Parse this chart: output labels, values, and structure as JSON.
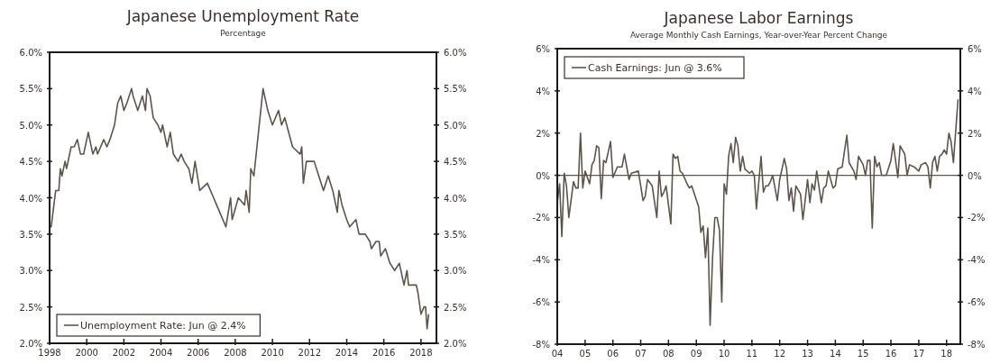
{
  "chart_data": [
    {
      "type": "line",
      "title": "Japanese Unemployment Rate",
      "subtitle": "Percentage",
      "x": [
        "1998-01",
        "1998-02",
        "1998-05",
        "1998-07",
        "1998-08",
        "1998-09",
        "1998-11",
        "1998-12",
        "1999-03",
        "1999-05",
        "1999-07",
        "1999-09",
        "1999-11",
        "2000-02",
        "2000-05",
        "2000-07",
        "2000-08",
        "2000-12",
        "2001-02",
        "2001-04",
        "2001-07",
        "2001-09",
        "2001-11",
        "2002-01",
        "2002-03",
        "2002-06",
        "2002-07",
        "2002-10",
        "2003-01",
        "2003-03",
        "2003-04",
        "2003-06",
        "2003-08",
        "2003-11",
        "2004-01",
        "2004-02",
        "2004-05",
        "2004-07",
        "2004-09",
        "2004-12",
        "2005-02",
        "2005-04",
        "2005-07",
        "2005-09",
        "2005-11",
        "2006-02",
        "2006-07",
        "2006-11",
        "2007-03",
        "2007-07",
        "2007-10",
        "2007-11",
        "2008-03",
        "2008-07",
        "2008-08",
        "2008-10",
        "2008-11",
        "2009-01",
        "2009-07",
        "2009-10",
        "2010-01",
        "2010-05",
        "2010-07",
        "2010-09",
        "2011-02",
        "2011-07",
        "2011-08",
        "2011-09",
        "2011-11",
        "2012-04",
        "2012-07",
        "2012-10",
        "2013-01",
        "2013-04",
        "2013-07",
        "2013-08",
        "2013-10",
        "2014-01",
        "2014-03",
        "2014-07",
        "2014-09",
        "2015-01",
        "2015-04",
        "2015-05",
        "2015-08",
        "2015-10",
        "2015-11",
        "2016-02",
        "2016-05",
        "2016-08",
        "2016-11",
        "2017-02",
        "2017-04",
        "2017-05",
        "2017-10",
        "2017-11",
        "2018-01",
        "2018-03",
        "2018-04",
        "2018-05",
        "2018-06"
      ],
      "series": [
        {
          "name": "Unemployment Rate: Jun @ 2.4%",
          "color": "#5f544a",
          "values": [
            3.6,
            3.6,
            4.1,
            4.1,
            4.4,
            4.3,
            4.5,
            4.4,
            4.7,
            4.7,
            4.8,
            4.6,
            4.6,
            4.9,
            4.6,
            4.7,
            4.6,
            4.8,
            4.7,
            4.8,
            5.0,
            5.3,
            5.4,
            5.2,
            5.3,
            5.5,
            5.4,
            5.2,
            5.4,
            5.2,
            5.5,
            5.4,
            5.1,
            5.0,
            4.9,
            5.0,
            4.7,
            4.9,
            4.6,
            4.5,
            4.6,
            4.5,
            4.4,
            4.2,
            4.5,
            4.1,
            4.2,
            4.0,
            3.8,
            3.6,
            4.0,
            3.7,
            4.0,
            3.9,
            4.1,
            3.8,
            4.4,
            4.3,
            5.5,
            5.2,
            5.0,
            5.2,
            5.0,
            5.1,
            4.7,
            4.6,
            4.7,
            4.2,
            4.5,
            4.5,
            4.3,
            4.1,
            4.3,
            4.1,
            3.8,
            4.1,
            3.9,
            3.7,
            3.6,
            3.7,
            3.5,
            3.5,
            3.4,
            3.3,
            3.4,
            3.4,
            3.2,
            3.3,
            3.1,
            3.0,
            3.1,
            2.8,
            3.0,
            2.8,
            2.8,
            2.7,
            2.4,
            2.5,
            2.5,
            2.2,
            2.4
          ]
        }
      ],
      "xlim": [
        "1998-01",
        "2018-11"
      ],
      "xticks": [
        {
          "value": "1998",
          "label": "1998"
        },
        {
          "value": "2000",
          "label": "2000"
        },
        {
          "value": "2002",
          "label": "2002"
        },
        {
          "value": "2004",
          "label": "2004"
        },
        {
          "value": "2006",
          "label": "2006"
        },
        {
          "value": "2008",
          "label": "2008"
        },
        {
          "value": "2010",
          "label": "2010"
        },
        {
          "value": "2012",
          "label": "2012"
        },
        {
          "value": "2014",
          "label": "2014"
        },
        {
          "value": "2016",
          "label": "2016"
        },
        {
          "value": "2018",
          "label": "2018"
        }
      ],
      "ylim": [
        2,
        6
      ],
      "yticks": [
        {
          "value": 2,
          "label": "2.0%"
        },
        {
          "value": 2.5,
          "label": "2.5%"
        },
        {
          "value": 3,
          "label": "3.0%"
        },
        {
          "value": 3.5,
          "label": "3.5%"
        },
        {
          "value": 4,
          "label": "4.0%"
        },
        {
          "value": 4.5,
          "label": "4.5%"
        },
        {
          "value": 5,
          "label": "5.0%"
        },
        {
          "value": 5.5,
          "label": "5.5%"
        },
        {
          "value": 6,
          "label": "6.0%"
        }
      ],
      "y2lim": [
        2,
        6
      ],
      "y2ticks": [
        {
          "value": 2,
          "label": "2.0%"
        },
        {
          "value": 2.5,
          "label": "2.5%"
        },
        {
          "value": 3,
          "label": "3.0%"
        },
        {
          "value": 3.5,
          "label": "3.5%"
        },
        {
          "value": 4,
          "label": "4.0%"
        },
        {
          "value": 4.5,
          "label": "4.5%"
        },
        {
          "value": 5,
          "label": "5.0%"
        },
        {
          "value": 5.5,
          "label": "5.5%"
        },
        {
          "value": 6,
          "label": "6.0%"
        }
      ],
      "legend": "bottom left"
    },
    {
      "type": "line",
      "title": "Japanese Labor Earnings",
      "subtitle": "Average Monthly Cash Earnings, Year-over-Year Percent Change",
      "x": [
        "2004-01",
        "2004-02",
        "2004-03",
        "2004-04",
        "2004-05",
        "2004-06",
        "2004-08",
        "2004-09",
        "2004-10",
        "2004-11",
        "2004-12",
        "2005-01",
        "2005-03",
        "2005-04",
        "2005-05",
        "2005-06",
        "2005-07",
        "2005-08",
        "2005-09",
        "2005-10",
        "2005-12",
        "2006-01",
        "2006-03",
        "2006-05",
        "2006-06",
        "2006-08",
        "2006-09",
        "2006-12",
        "2007-02",
        "2007-03",
        "2007-04",
        "2007-06",
        "2007-08",
        "2007-09",
        "2007-10",
        "2007-11",
        "2007-12",
        "2008-02",
        "2008-03",
        "2008-04",
        "2008-05",
        "2008-06",
        "2008-07",
        "2008-09",
        "2008-10",
        "2008-11",
        "2009-02",
        "2009-03",
        "2009-04",
        "2009-05",
        "2009-06",
        "2009-07",
        "2009-08",
        "2009-09",
        "2009-10",
        "2009-11",
        "2009-12",
        "2010-01",
        "2010-02",
        "2010-03",
        "2010-04",
        "2010-05",
        "2010-06",
        "2010-07",
        "2010-08",
        "2010-09",
        "2010-10",
        "2010-12",
        "2011-01",
        "2011-02",
        "2011-03",
        "2011-05",
        "2011-06",
        "2011-07",
        "2011-08",
        "2011-09",
        "2011-10",
        "2011-12",
        "2012-01",
        "2012-03",
        "2012-04",
        "2012-05",
        "2012-06",
        "2012-07",
        "2012-08",
        "2012-09",
        "2012-10",
        "2012-11",
        "2013-01",
        "2013-02",
        "2013-03",
        "2013-04",
        "2013-05",
        "2013-07",
        "2013-08",
        "2013-09",
        "2013-10",
        "2013-12",
        "2014-01",
        "2014-02",
        "2014-04",
        "2014-06",
        "2014-07",
        "2014-09",
        "2014-10",
        "2014-11",
        "2015-01",
        "2015-02",
        "2015-03",
        "2015-04",
        "2015-05",
        "2015-06",
        "2015-07",
        "2015-08",
        "2015-09",
        "2015-11",
        "2016-01",
        "2016-02",
        "2016-04",
        "2016-05",
        "2016-07",
        "2016-08",
        "2016-09",
        "2016-11",
        "2017-01",
        "2017-02",
        "2017-04",
        "2017-05",
        "2017-06",
        "2017-07",
        "2017-08",
        "2017-09",
        "2017-10",
        "2017-11",
        "2017-12",
        "2018-01",
        "2018-02",
        "2018-03",
        "2018-04",
        "2018-05",
        "2018-06"
      ],
      "series": [
        {
          "name": "Cash Earnings: Jun @ 3.6%",
          "color": "#5f544a",
          "values": [
            -1.3,
            -0.4,
            -2.9,
            0.1,
            -0.5,
            -2.0,
            -0.3,
            -0.6,
            -0.6,
            2.0,
            -0.6,
            0.2,
            -0.4,
            0.5,
            0.7,
            1.4,
            1.3,
            -1.1,
            0.7,
            0.6,
            1.6,
            -0.1,
            0.4,
            0.4,
            1.0,
            -0.2,
            0.1,
            0.2,
            -1.2,
            -1.0,
            -0.2,
            -0.5,
            -2.0,
            0.2,
            -1.0,
            -0.8,
            -0.5,
            -2.3,
            1.0,
            0.8,
            0.9,
            0.2,
            0.1,
            -0.4,
            -0.6,
            -0.5,
            -1.5,
            -2.7,
            -2.4,
            -3.9,
            -2.5,
            -7.1,
            -4.0,
            -2.0,
            -2.0,
            -2.6,
            -6.0,
            -0.4,
            -0.9,
            0.9,
            1.5,
            0.6,
            1.8,
            1.4,
            0.2,
            0.9,
            0.3,
            0.1,
            0.2,
            0.0,
            -1.6,
            0.9,
            -0.8,
            -0.5,
            -0.5,
            -0.3,
            0.0,
            -1.2,
            -0.2,
            0.8,
            0.3,
            -1.2,
            -0.6,
            -1.7,
            -0.5,
            -0.7,
            -0.9,
            -2.1,
            -0.2,
            -1.3,
            -0.4,
            -0.7,
            0.2,
            -1.3,
            -0.6,
            -0.5,
            0.2,
            -0.6,
            -0.5,
            0.3,
            0.4,
            1.9,
            0.6,
            0.2,
            -0.2,
            0.9,
            0.5,
            0.0,
            0.7,
            0.7,
            -2.5,
            0.9,
            0.4,
            0.6,
            0.0,
            0.0,
            0.7,
            1.5,
            -0.1,
            1.4,
            1.0,
            0.0,
            0.5,
            0.4,
            0.2,
            0.5,
            0.6,
            0.4,
            -0.6,
            0.6,
            0.9,
            0.2,
            0.9,
            1.0,
            1.2,
            1.0,
            2.0,
            1.6,
            0.6,
            2.1,
            3.6
          ]
        }
      ],
      "xlim": [
        "2004-01",
        "2018-07"
      ],
      "xticks": [
        {
          "value": "2004",
          "label": "04"
        },
        {
          "value": "2005",
          "label": "05"
        },
        {
          "value": "2006",
          "label": "06"
        },
        {
          "value": "2007",
          "label": "07"
        },
        {
          "value": "2008",
          "label": "08"
        },
        {
          "value": "2009",
          "label": "09"
        },
        {
          "value": "2010",
          "label": "10"
        },
        {
          "value": "2011",
          "label": "11"
        },
        {
          "value": "2012",
          "label": "12"
        },
        {
          "value": "2013",
          "label": "13"
        },
        {
          "value": "2014",
          "label": "14"
        },
        {
          "value": "2015",
          "label": "15"
        },
        {
          "value": "2016",
          "label": "16"
        },
        {
          "value": "2017",
          "label": "17"
        },
        {
          "value": "2018",
          "label": "18"
        }
      ],
      "ylim": [
        -8,
        6
      ],
      "yticks": [
        {
          "value": -8,
          "label": "-8%"
        },
        {
          "value": -6,
          "label": "-6%"
        },
        {
          "value": -4,
          "label": "-4%"
        },
        {
          "value": -2,
          "label": "-2%"
        },
        {
          "value": 0,
          "label": "0%"
        },
        {
          "value": 2,
          "label": "2%"
        },
        {
          "value": 4,
          "label": "4%"
        },
        {
          "value": 6,
          "label": "6%"
        }
      ],
      "y2lim": [
        -8,
        6
      ],
      "y2ticks": [
        {
          "value": -8,
          "label": "-8%"
        },
        {
          "value": -6,
          "label": "-6%"
        },
        {
          "value": -4,
          "label": "-4%"
        },
        {
          "value": -2,
          "label": "-2%"
        },
        {
          "value": 0,
          "label": "0%"
        },
        {
          "value": 2,
          "label": "2%"
        },
        {
          "value": 4,
          "label": "4%"
        },
        {
          "value": 6,
          "label": "6%"
        }
      ],
      "ref_lines": [
        {
          "axis": "y",
          "value": 0,
          "color": "#5f544a"
        }
      ],
      "legend": "top left"
    }
  ]
}
